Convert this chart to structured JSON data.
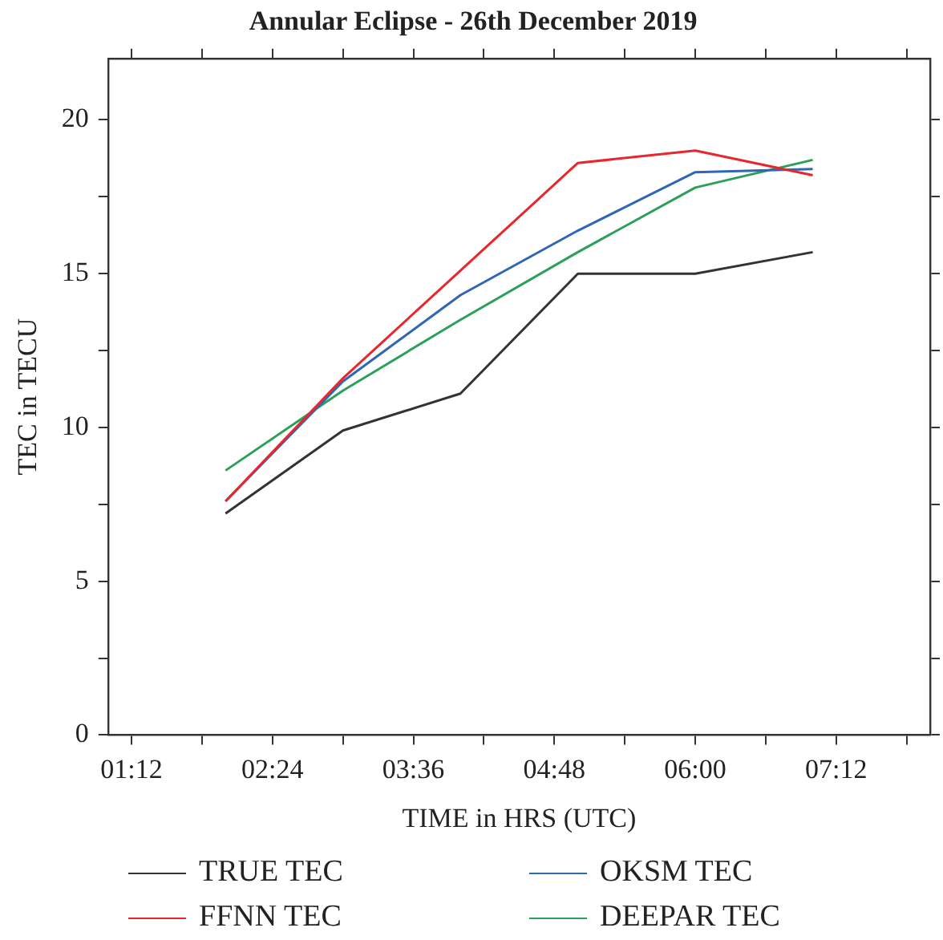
{
  "chart_data": {
    "type": "line",
    "title": "Annular Eclipse - 26th December 2019",
    "xlabel": "TIME in HRS (UTC)",
    "ylabel": "TEC in TECU",
    "x": [
      2,
      3,
      4,
      5,
      6,
      7
    ],
    "series": [
      {
        "name": "TRUE TEC",
        "color": "#333333",
        "values": [
          7.2,
          9.9,
          11.1,
          15.0,
          15.0,
          15.7
        ]
      },
      {
        "name": "FFNN TEC",
        "color": "#e8262b",
        "values": [
          7.6,
          11.6,
          15.1,
          18.6,
          19.0,
          18.2
        ]
      },
      {
        "name": "OKSM TEC",
        "color": "#2f67b5",
        "values": [
          7.6,
          11.5,
          14.3,
          16.4,
          18.3,
          18.4
        ]
      },
      {
        "name": "DEEPAR TEC",
        "color": "#2ca05a",
        "values": [
          8.6,
          11.2,
          13.5,
          15.7,
          17.8,
          18.7
        ]
      }
    ],
    "xlim": [
      1,
      8
    ],
    "xticks": [
      {
        "value": 1.2,
        "label": "01:12"
      },
      {
        "value": 1.8,
        "label": null
      },
      {
        "value": 2.4,
        "label": "02:24"
      },
      {
        "value": 3,
        "label": null
      },
      {
        "value": 3.6,
        "label": "03:36"
      },
      {
        "value": 4.2,
        "label": null
      },
      {
        "value": 4.8,
        "label": "04:48"
      },
      {
        "value": 5.4,
        "label": null
      },
      {
        "value": 6,
        "label": "06:00"
      },
      {
        "value": 6.6,
        "label": null
      },
      {
        "value": 7.2,
        "label": "07:12"
      },
      {
        "value": 7.8,
        "label": null
      }
    ],
    "ylim": [
      0,
      22
    ],
    "yticks": [
      0,
      {
        "value": 2.5,
        "label": null
      },
      5,
      {
        "value": 7.5,
        "label": null
      },
      10,
      {
        "value": 12.5,
        "label": null
      },
      15,
      {
        "value": 17.5,
        "label": null
      },
      20
    ],
    "grid": false,
    "legend": "bottom",
    "marker": "none",
    "line_style": "solid"
  }
}
